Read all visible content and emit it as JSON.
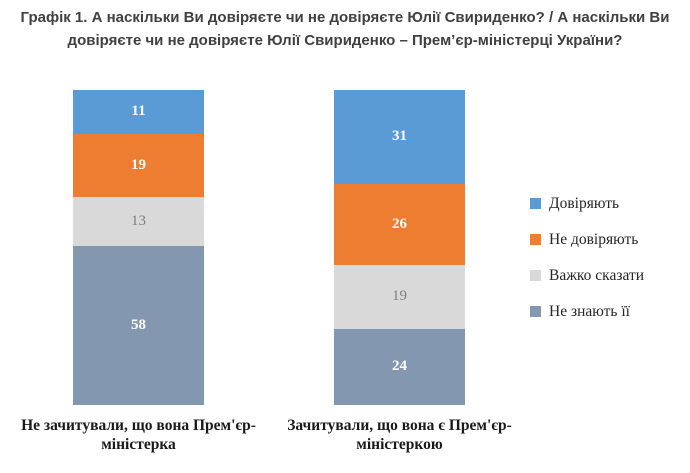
{
  "chart_data": {
    "type": "bar",
    "subtype": "stacked-100-column",
    "title": "Графік 1. А наскільки Ви довіряєте чи не довіряєте Юлії Свириденко? / А наскільки Ви довіряєте чи не довіряєте Юлії Свириденко – Прем’єр-міністерці України?",
    "categories": [
      "Не зачитували, що вона Прем'єр-міністерка",
      "Зачитували, що вона є Прем'єр-міністеркою"
    ],
    "series": [
      {
        "name": "Довіряють",
        "color": "#5B9BD5",
        "values": [
          11,
          31
        ]
      },
      {
        "name": "Не довіряють",
        "color": "#ED7D31",
        "values": [
          19,
          26
        ]
      },
      {
        "name": "Важко сказати",
        "color": "#D9D9D9",
        "values": [
          13,
          19
        ]
      },
      {
        "name": "Не знають її",
        "color": "#8497B0",
        "values": [
          58,
          24
        ]
      }
    ],
    "legend_position": "right",
    "value_unit": "percent",
    "ylim": [
      0,
      100
    ],
    "grid": false,
    "colors": {
      "title_text": "#404040",
      "category_label_text": "#1a1a1a",
      "segment_value_text": "#ffffff",
      "muted_segment_value_text": "#7f7f7f",
      "background": "#ffffff"
    }
  }
}
